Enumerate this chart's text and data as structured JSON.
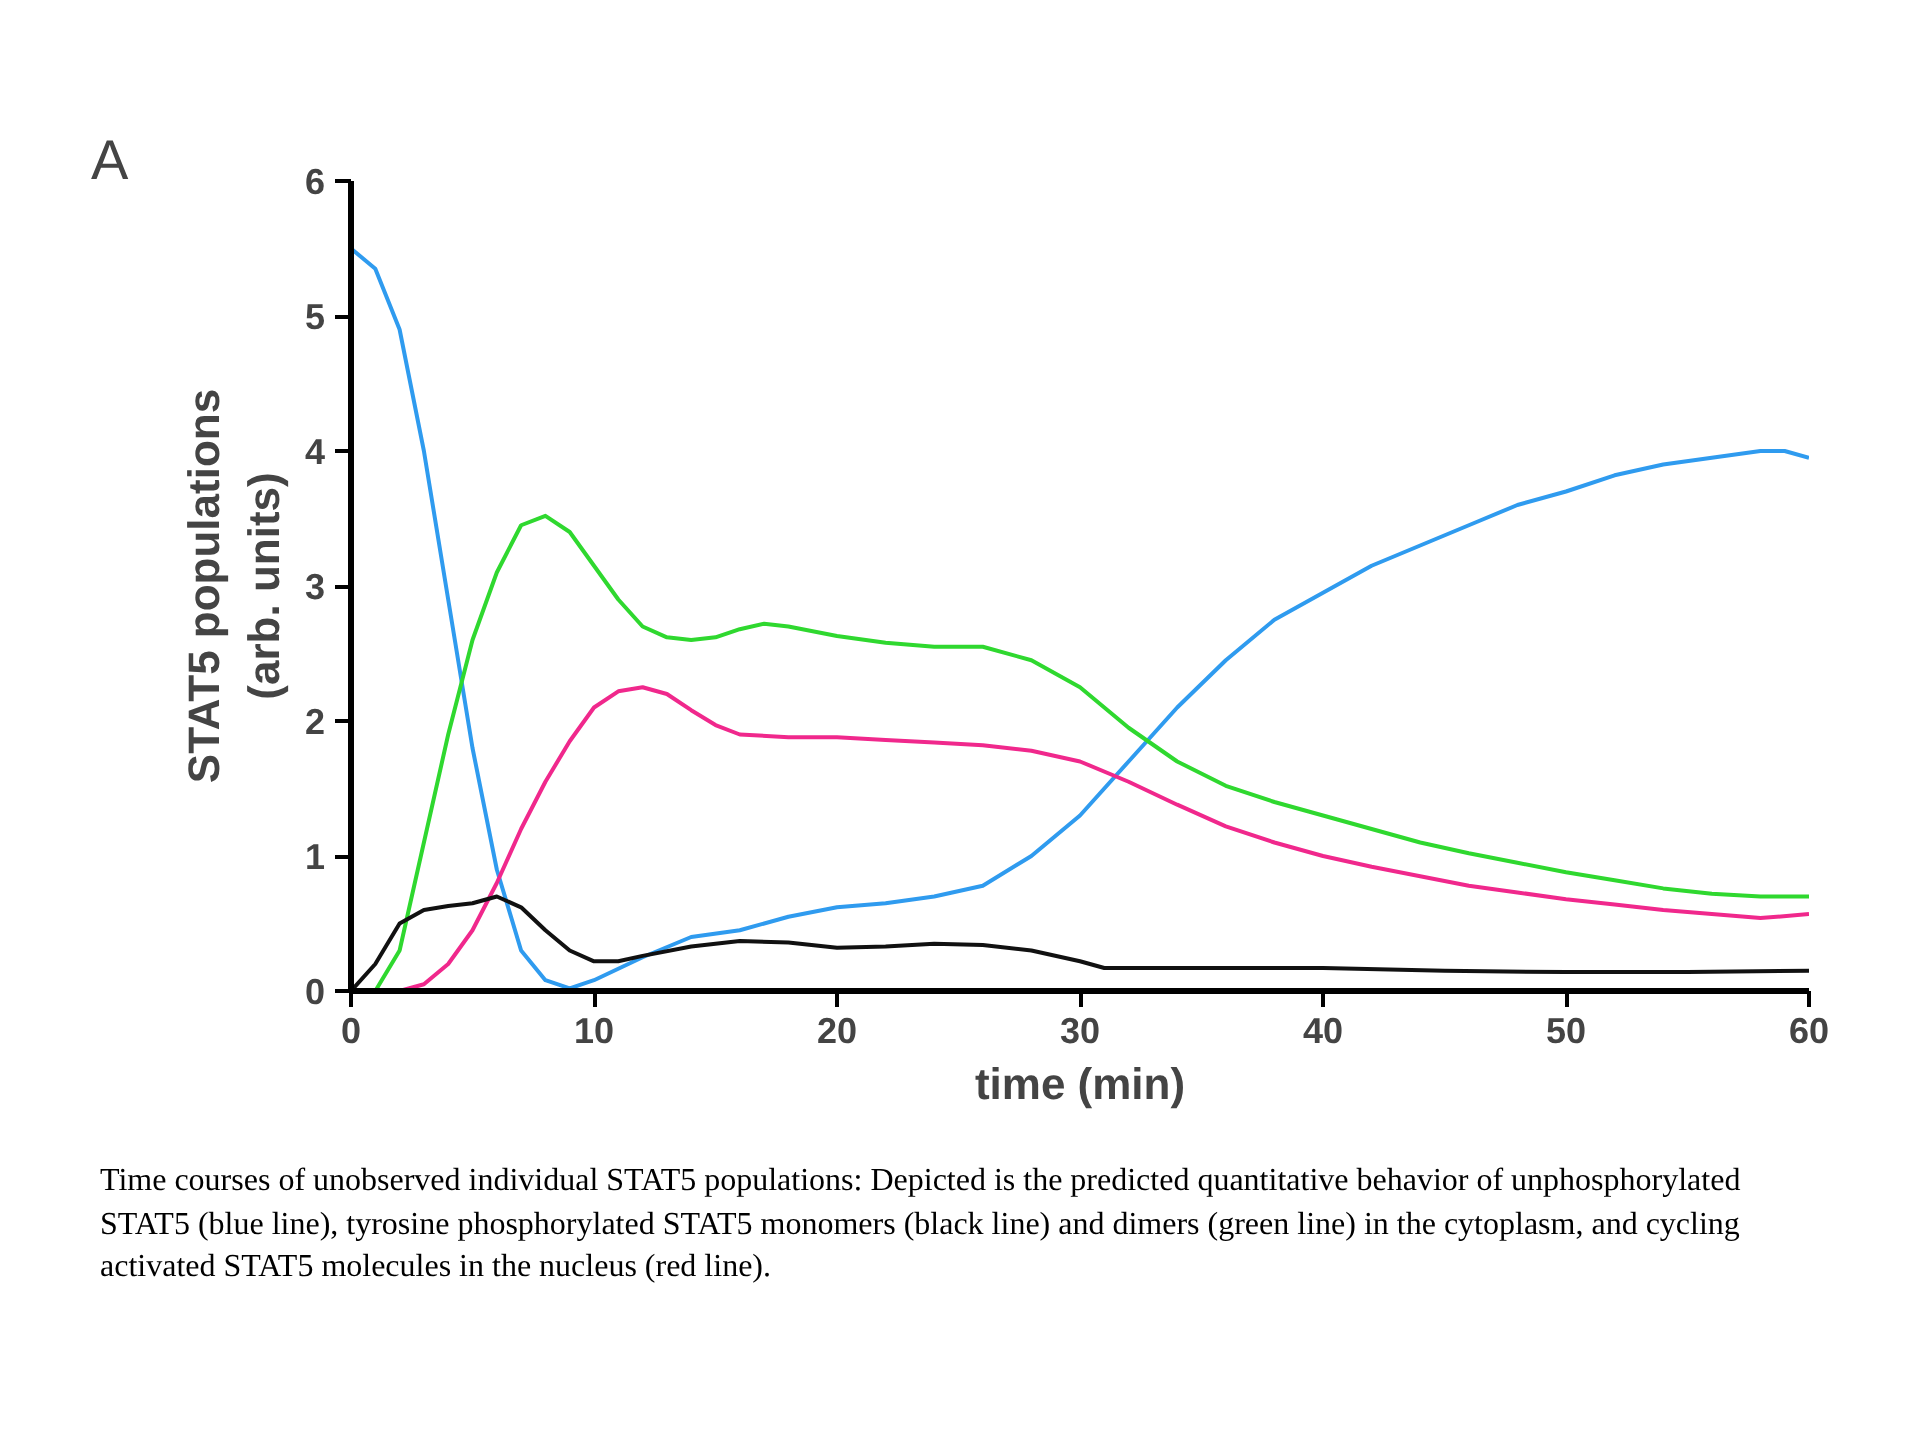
{
  "chart_data": {
    "type": "line",
    "title": "A",
    "xlabel": "time (min)",
    "ylabel": "STAT5 populations\n(arb. units)",
    "xlim": [
      0,
      60
    ],
    "ylim": [
      0,
      6
    ],
    "xticks": [
      0,
      10,
      20,
      30,
      40,
      50,
      60
    ],
    "yticks": [
      0,
      1,
      2,
      3,
      4,
      5,
      6
    ],
    "line_style": "solid",
    "series": [
      {
        "color": "#2f9bef",
        "x": [
          0,
          1,
          2,
          3,
          4,
          5,
          6,
          7,
          8,
          9,
          10,
          12,
          14,
          16,
          18,
          20,
          22,
          24,
          26,
          28,
          30,
          32,
          34,
          36,
          38,
          40,
          42,
          44,
          46,
          48,
          50,
          52,
          54,
          56,
          58,
          59,
          60
        ],
        "values": [
          5.5,
          5.35,
          4.9,
          4.0,
          2.9,
          1.8,
          0.9,
          0.3,
          0.08,
          0.02,
          0.08,
          0.25,
          0.4,
          0.45,
          0.55,
          0.62,
          0.65,
          0.7,
          0.78,
          1.0,
          1.3,
          1.7,
          2.1,
          2.45,
          2.75,
          2.95,
          3.15,
          3.3,
          3.45,
          3.6,
          3.7,
          3.82,
          3.9,
          3.95,
          4.0,
          4.0,
          3.95
        ]
      },
      {
        "color": "#2fd82f",
        "x": [
          0,
          1,
          2,
          3,
          4,
          5,
          6,
          7,
          8,
          9,
          10,
          11,
          12,
          13,
          14,
          15,
          16,
          17,
          18,
          20,
          22,
          24,
          26,
          28,
          30,
          32,
          34,
          36,
          38,
          40,
          42,
          44,
          46,
          48,
          50,
          52,
          54,
          56,
          58,
          60
        ],
        "values": [
          0,
          0,
          0.3,
          1.1,
          1.9,
          2.6,
          3.1,
          3.45,
          3.52,
          3.4,
          3.15,
          2.9,
          2.7,
          2.62,
          2.6,
          2.62,
          2.68,
          2.72,
          2.7,
          2.63,
          2.58,
          2.55,
          2.55,
          2.45,
          2.25,
          1.95,
          1.7,
          1.52,
          1.4,
          1.3,
          1.2,
          1.1,
          1.02,
          0.95,
          0.88,
          0.82,
          0.76,
          0.72,
          0.7,
          0.7
        ]
      },
      {
        "color": "#f0288c",
        "x": [
          0,
          2,
          3,
          4,
          5,
          6,
          7,
          8,
          9,
          10,
          11,
          12,
          13,
          14,
          15,
          16,
          18,
          20,
          22,
          24,
          26,
          28,
          30,
          32,
          34,
          36,
          38,
          40,
          42,
          44,
          46,
          48,
          50,
          52,
          54,
          56,
          58,
          60
        ],
        "values": [
          0,
          0,
          0.05,
          0.2,
          0.45,
          0.8,
          1.2,
          1.55,
          1.85,
          2.1,
          2.22,
          2.25,
          2.2,
          2.08,
          1.97,
          1.9,
          1.88,
          1.88,
          1.86,
          1.84,
          1.82,
          1.78,
          1.7,
          1.55,
          1.38,
          1.22,
          1.1,
          1.0,
          0.92,
          0.85,
          0.78,
          0.73,
          0.68,
          0.64,
          0.6,
          0.57,
          0.54,
          0.57
        ]
      },
      {
        "color": "#111111",
        "x": [
          0,
          1,
          2,
          3,
          4,
          5,
          6,
          7,
          8,
          9,
          10,
          11,
          12,
          14,
          16,
          18,
          20,
          22,
          24,
          26,
          28,
          30,
          31,
          35,
          40,
          45,
          50,
          55,
          60
        ],
        "values": [
          0,
          0.2,
          0.5,
          0.6,
          0.63,
          0.65,
          0.7,
          0.62,
          0.45,
          0.3,
          0.22,
          0.22,
          0.26,
          0.33,
          0.37,
          0.36,
          0.32,
          0.33,
          0.35,
          0.34,
          0.3,
          0.22,
          0.17,
          0.17,
          0.17,
          0.15,
          0.14,
          0.14,
          0.15
        ]
      }
    ],
    "annotations": [
      "Time courses of unobserved individual STAT5 populations: Depicted is the predicted quantitative behavior of unphosphorylated STAT5 (blue line), tyrosine phosphorylated STAT5 monomers (black line) and dimers (green line) in the cytoplasm, and cycling activated STAT5 molecules in the nucleus (red line)."
    ]
  }
}
